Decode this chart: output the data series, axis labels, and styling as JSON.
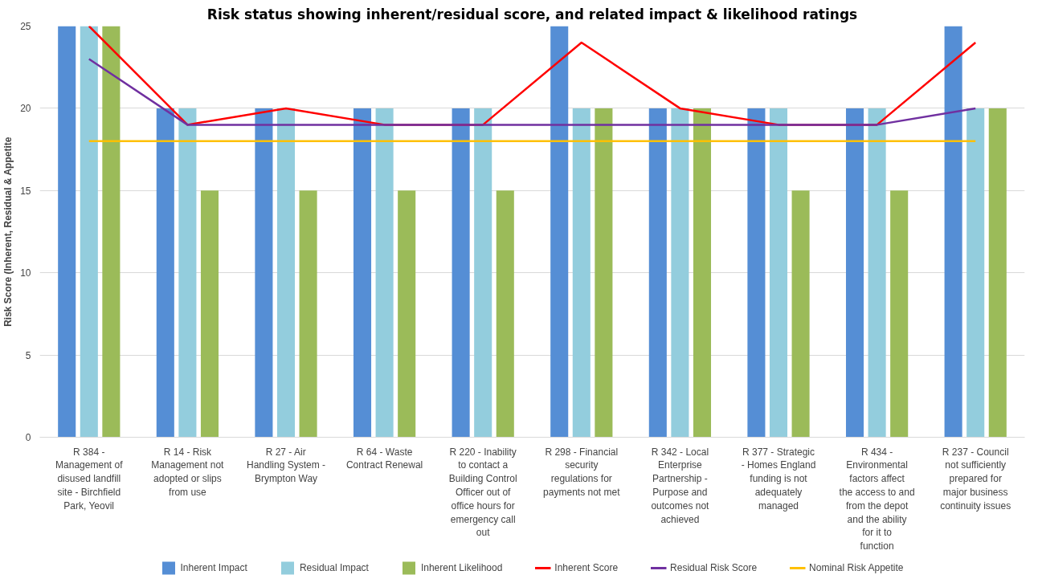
{
  "chart_data": {
    "type": "bar",
    "title": "Risk status showing inherent/residual score, and related impact & likelihood ratings",
    "ylabel": "Risk Score (Inherent, Residual & Appetite",
    "categories": [
      "R 384 - Management of disused landfill site - Birchfield Park, Yeovil",
      "R 14 - Risk Management not adopted or slips from use",
      "R 27 - Air Handling System - Brympton Way",
      "R 64 - Waste Contract Renewal",
      "R 220 - Inability to contact a Building Control Officer out of office hours for emergency call out",
      "R 298 - Financial security regulations for payments not met",
      "R 342 - Local Enterprise Partnership - Purpose and outcomes not achieved",
      "R 377 - Strategic - Homes England funding is not adequately managed",
      "R 434 - Environmental factors affect the access to and from the depot and the ability for it to function",
      "R 237 - Council not sufficiently prepared for major business continuity issues"
    ],
    "series": [
      {
        "name": "Inherent Impact",
        "color": "#558ed5",
        "values": [
          25,
          20,
          20,
          20,
          20,
          25,
          20,
          20,
          20,
          25
        ]
      },
      {
        "name": "Residual Impact",
        "color": "#93cddd",
        "values": [
          25,
          20,
          20,
          20,
          20,
          20,
          20,
          20,
          20,
          20
        ]
      },
      {
        "name": "Inherent Likelihood",
        "color": "#9bbb59",
        "values": [
          25,
          15,
          15,
          15,
          15,
          20,
          20,
          15,
          15,
          20
        ]
      },
      {
        "name": "Inherent Score",
        "type": "line",
        "color": "#ff0000",
        "values": [
          25,
          19,
          20,
          19,
          19,
          24,
          20,
          19,
          19,
          24
        ]
      },
      {
        "name": "Residual Risk Score",
        "type": "line",
        "color": "#7030a0",
        "values": [
          23,
          19,
          19,
          19,
          19,
          19,
          19,
          19,
          19,
          20
        ]
      },
      {
        "name": "Nominal Risk Appetite",
        "type": "line",
        "color": "#ffc000",
        "values": [
          18,
          18,
          18,
          18,
          18,
          18,
          18,
          18,
          18,
          18
        ]
      }
    ],
    "ylim": [
      0,
      25
    ],
    "yticks": [
      0,
      5,
      10,
      15,
      20,
      25
    ],
    "grid": "y",
    "legend": "bottom",
    "line_style": "solid",
    "marker": "none"
  }
}
